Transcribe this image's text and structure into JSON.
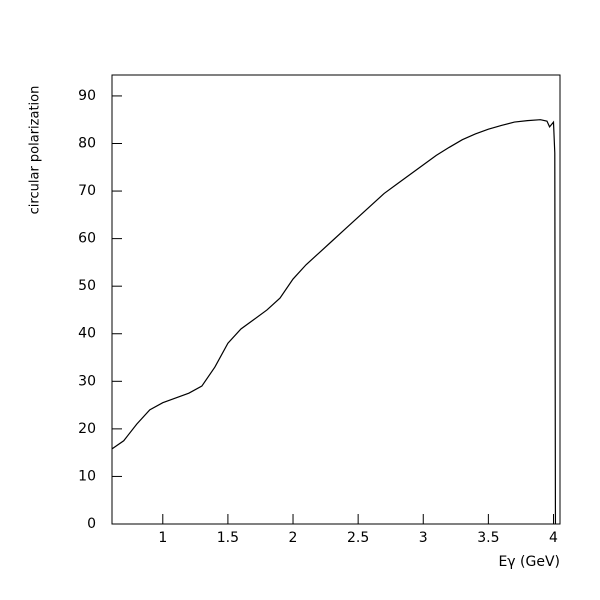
{
  "chart_data": {
    "type": "line",
    "x_label": "Eγ (GeV)",
    "y_label": "circular polarization",
    "x": [
      0.61,
      0.7,
      0.8,
      0.9,
      1.0,
      1.1,
      1.2,
      1.3,
      1.4,
      1.5,
      1.6,
      1.7,
      1.8,
      1.9,
      2.0,
      2.1,
      2.2,
      2.3,
      2.4,
      2.5,
      2.6,
      2.7,
      2.8,
      2.9,
      3.0,
      3.1,
      3.2,
      3.3,
      3.4,
      3.5,
      3.6,
      3.7,
      3.8,
      3.9,
      3.95,
      3.97,
      4.0,
      4.01,
      4.015
    ],
    "values": [
      15.8,
      17.5,
      21,
      24,
      25.5,
      26.5,
      27.5,
      29,
      33,
      38,
      41,
      43,
      45,
      47.5,
      51.5,
      54.5,
      57,
      59.5,
      62,
      64.5,
      67,
      69.5,
      71.5,
      73.5,
      75.5,
      77.5,
      79.2,
      80.8,
      82,
      83,
      83.8,
      84.5,
      84.8,
      85,
      84.7,
      83.5,
      84.5,
      78,
      0
    ],
    "color": "#000000",
    "xlim": [
      0.61,
      4.05
    ],
    "ylim": [
      0,
      94.4
    ],
    "xticks": [
      1,
      1.5,
      2,
      2.5,
      3,
      3.5,
      4
    ],
    "yticks": [
      0,
      10,
      20,
      30,
      40,
      50,
      60,
      70,
      80,
      90
    ]
  }
}
